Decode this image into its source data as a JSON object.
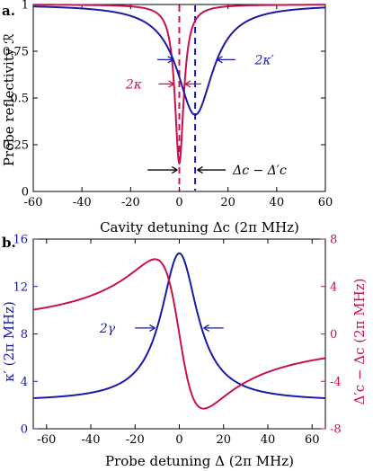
{
  "colors": {
    "blue": "#1a1aa6",
    "red": "#c8114d",
    "axis": "#000000"
  },
  "panels": {
    "a": "a.",
    "b": "b."
  },
  "chart_data": [
    {
      "type": "line",
      "panel": "a.",
      "xlabel": "Cavity detuning Δc (2π MHz)",
      "ylabel": "Probe reflectivity ℛ",
      "xlim": [
        -60,
        60
      ],
      "ylim": [
        0,
        1
      ],
      "xticks": [
        -60,
        -40,
        -20,
        0,
        20,
        40,
        60
      ],
      "xtick_labels": [
        "-60",
        "-40",
        "-20",
        "0",
        "20",
        "40",
        "60"
      ],
      "yticks": [
        0,
        0.25,
        0.5,
        0.75,
        1
      ],
      "ytick_labels": [
        "0",
        "0.25",
        "0.5",
        "0.75",
        "1"
      ],
      "series": [
        {
          "color": "red",
          "center": 0,
          "min": 0.15,
          "halfwidth": 2.2
        },
        {
          "color": "blue",
          "center": 6.5,
          "min": 0.41,
          "halfwidth": 9
        }
      ],
      "markers": [
        {
          "x": 0,
          "color": "red",
          "style": "dashed"
        },
        {
          "x": 6.5,
          "color": "blue",
          "style": "dashed"
        }
      ],
      "annotations": {
        "blue_width": "2κ′",
        "red_width": "2κ",
        "shift": "Δc − Δ′c"
      }
    },
    {
      "type": "line",
      "panel": "b.",
      "xlabel": "Probe detuning Δ (2π MHz)",
      "ylabel_left": "κ′ (2π MHz)",
      "ylabel_right": "Δ′c − Δc (2π MHz)",
      "xlim": [
        -66,
        66
      ],
      "ylim_left": [
        0,
        16
      ],
      "ylim_right": [
        -8,
        8
      ],
      "xticks": [
        -60,
        -40,
        -20,
        0,
        20,
        40,
        60
      ],
      "xtick_labels": [
        "-60",
        "-40",
        "-20",
        "0",
        "20",
        "40",
        "60"
      ],
      "yticks_left": [
        0,
        4,
        8,
        12,
        16
      ],
      "ytick_labels_left": [
        "0",
        "4",
        "8",
        "12",
        "16"
      ],
      "yticks_right": [
        -8,
        -4,
        0,
        4,
        8
      ],
      "ytick_labels_right": [
        "-8",
        "-4",
        "0",
        "4",
        "8"
      ],
      "series": [
        {
          "color": "blue",
          "axis": "left",
          "baseline": 2.3,
          "peak": 14.8,
          "halfwidth": 10
        },
        {
          "color": "red",
          "axis": "right",
          "amplitude": 6.3,
          "halfwidth": 11
        }
      ],
      "annotations": {
        "width": "2γ"
      }
    }
  ]
}
